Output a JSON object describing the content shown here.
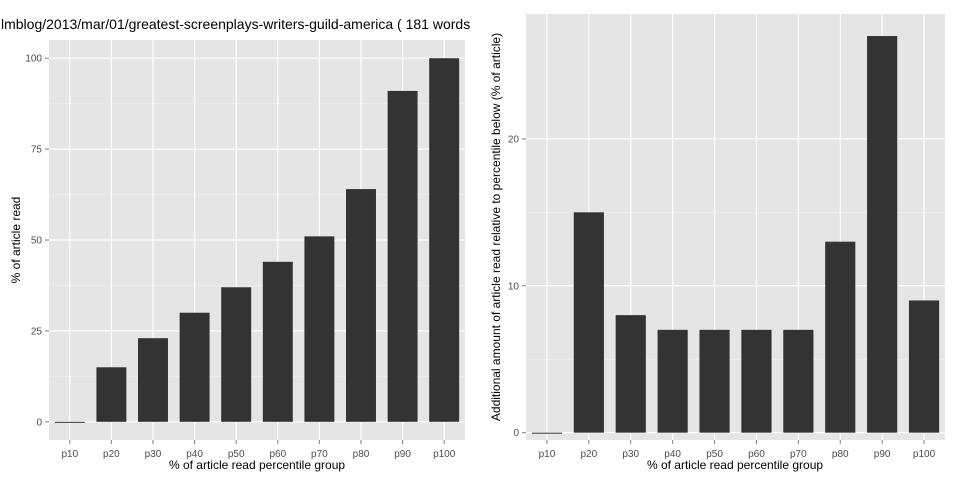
{
  "colors": {
    "panel": "#e5e5e5",
    "grid_major": "#ffffff",
    "grid_minor": "#f2f2f2",
    "bar": "#333333",
    "tick_text": "#4d4d4d",
    "text": "#000000"
  },
  "chart_data": [
    {
      "type": "bar",
      "title": "lmblog/2013/mar/01/greatest-screenplays-writers-guild-america ( 181 words",
      "xlabel": "% of article read percentile group",
      "ylabel": "% of article read",
      "categories": [
        "p10",
        "p20",
        "p30",
        "p40",
        "p50",
        "p60",
        "p70",
        "p80",
        "p90",
        "p100"
      ],
      "values": [
        0,
        15,
        23,
        30,
        37,
        44,
        51,
        64,
        91,
        100
      ],
      "ylim": [
        -5,
        105
      ],
      "yticks": [
        0,
        25,
        50,
        75,
        100
      ],
      "ytick_labels": [
        "0",
        "25",
        "50",
        "75",
        "100"
      ],
      "grid": true,
      "legend": "none"
    },
    {
      "type": "bar",
      "title": "",
      "xlabel": "% of article read percentile group",
      "ylabel": "Additional amount of article read relative to percentile below (% of article)",
      "categories": [
        "p10",
        "p20",
        "p30",
        "p40",
        "p50",
        "p60",
        "p70",
        "p80",
        "p90",
        "p100"
      ],
      "values": [
        0,
        15,
        8,
        7,
        7,
        7,
        7,
        13,
        27,
        9
      ],
      "ylim": [
        -0.5,
        28.5
      ],
      "yticks": [
        0,
        10,
        20
      ],
      "ytick_labels": [
        "0",
        "10",
        "20"
      ],
      "grid": true,
      "legend": "none"
    }
  ]
}
